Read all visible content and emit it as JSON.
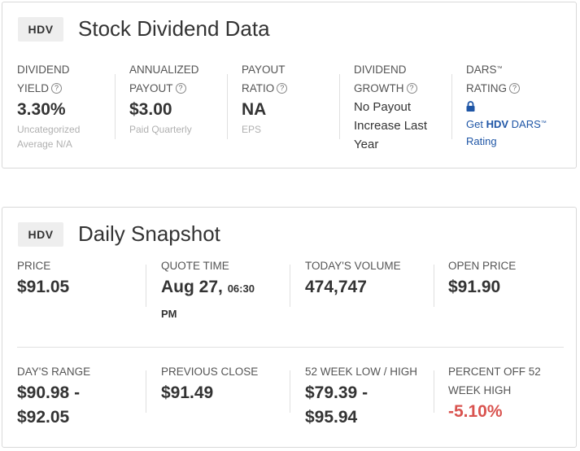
{
  "dividend_card": {
    "ticker": "HDV",
    "title": "Stock Dividend Data",
    "yield": {
      "label1": "DIVIDEND",
      "label2": "YIELD",
      "value": "3.30%",
      "sub1": "Uncategorized",
      "sub2": "Average N/A"
    },
    "payout": {
      "label1": "ANNUALIZED",
      "label2": "PAYOUT",
      "value": "$3.00",
      "sub": "Paid Quarterly"
    },
    "ratio": {
      "label1": "PAYOUT",
      "label2": "RATIO",
      "value": "NA",
      "sub": "EPS"
    },
    "growth": {
      "label1": "DIVIDEND",
      "label2": "GROWTH",
      "line1": "No Payout",
      "line2": "Increase Last",
      "line3": "Year"
    },
    "dars": {
      "label1": "DARS",
      "tm": "™",
      "label2": "RATING",
      "link_prefix": "Get ",
      "link_ticker": "HDV",
      "link_suffix": " DARS",
      "link_tm": "™",
      "link_line2": "Rating"
    },
    "help_glyph": "?"
  },
  "snapshot_card": {
    "ticker": "HDV",
    "title": "Daily Snapshot",
    "price": {
      "label": "PRICE",
      "value": "$91.05"
    },
    "quote_time": {
      "label": "QUOTE TIME",
      "date": "Aug 27,",
      "time": "06:30",
      "ampm": "PM"
    },
    "volume": {
      "label": "TODAY'S VOLUME",
      "value": "474,747"
    },
    "open": {
      "label": "OPEN PRICE",
      "value": "$91.90"
    },
    "range": {
      "label": "DAY'S RANGE",
      "line1": "$90.98 -",
      "line2": "$92.05"
    },
    "prev_close": {
      "label": "PREVIOUS CLOSE",
      "value": "$91.49"
    },
    "week52": {
      "label": "52 WEEK LOW / HIGH",
      "line1": "$79.39 -",
      "line2": "$95.94"
    },
    "pct_off": {
      "label1": "PERCENT OFF 52",
      "label2": "WEEK HIGH",
      "value": "-5.10%",
      "color": "#d9534f"
    }
  },
  "icons": {
    "lock": "lock-icon",
    "help": "help-circle-icon"
  }
}
